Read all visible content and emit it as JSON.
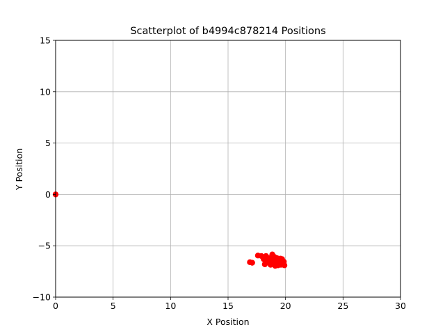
{
  "chart_data": {
    "type": "scatter",
    "title": "Scatterplot of b4994c878214 Positions",
    "xlabel": "X Position",
    "ylabel": "Y Position",
    "xlim": [
      0,
      30
    ],
    "ylim": [
      -10,
      15
    ],
    "xticks": [
      0,
      5,
      10,
      15,
      20,
      25,
      30
    ],
    "yticks": [
      -10,
      -5,
      0,
      5,
      10,
      15
    ],
    "xtick_labels": [
      "0",
      "5",
      "10",
      "15",
      "20",
      "25",
      "30"
    ],
    "ytick_labels": [
      "−10",
      "−5",
      "0",
      "5",
      "10",
      "15"
    ],
    "grid": true,
    "marker_color": "#ff0000",
    "points": [
      [
        0.0,
        0.0
      ],
      [
        16.9,
        -6.6
      ],
      [
        17.1,
        -6.65
      ],
      [
        17.6,
        -5.95
      ],
      [
        17.9,
        -6.0
      ],
      [
        18.1,
        -6.3
      ],
      [
        18.2,
        -6.8
      ],
      [
        18.3,
        -6.0
      ],
      [
        18.4,
        -6.4
      ],
      [
        18.5,
        -6.6
      ],
      [
        18.6,
        -6.2
      ],
      [
        18.7,
        -6.85
      ],
      [
        18.8,
        -6.5
      ],
      [
        18.85,
        -5.85
      ],
      [
        18.9,
        -6.3
      ],
      [
        19.0,
        -6.7
      ],
      [
        19.05,
        -6.1
      ],
      [
        19.1,
        -6.95
      ],
      [
        19.2,
        -6.45
      ],
      [
        19.25,
        -6.2
      ],
      [
        19.3,
        -6.75
      ],
      [
        19.35,
        -6.9
      ],
      [
        19.4,
        -6.35
      ],
      [
        19.5,
        -6.6
      ],
      [
        19.55,
        -6.25
      ],
      [
        19.6,
        -6.85
      ],
      [
        19.65,
        -6.5
      ],
      [
        19.7,
        -6.3
      ],
      [
        19.8,
        -6.7
      ],
      [
        19.85,
        -6.55
      ],
      [
        19.9,
        -6.9
      ]
    ]
  }
}
